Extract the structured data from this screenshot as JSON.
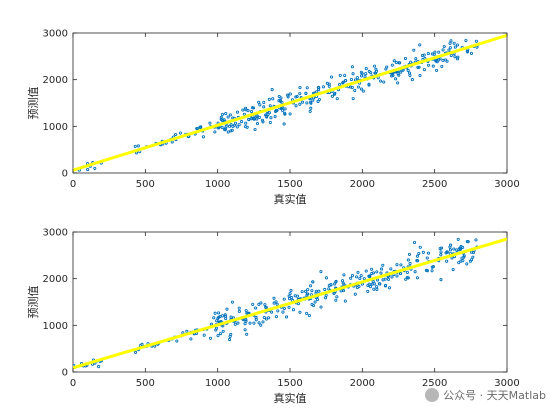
{
  "chart_data": [
    {
      "type": "scatter",
      "xlabel": "真实值",
      "ylabel": "预测值",
      "xlim": [
        0,
        3000
      ],
      "ylim": [
        0,
        3000
      ],
      "xticks": [
        0,
        500,
        1000,
        1500,
        2000,
        2500,
        3000
      ],
      "yticks": [
        0,
        1000,
        2000,
        3000
      ],
      "grid": false,
      "scatter_color": "#0072BD",
      "fit_color": "#FFFF00",
      "fit_line": {
        "x": [
          0,
          3000
        ],
        "y": [
          60,
          2950
        ]
      },
      "point_count": 360,
      "spread": 230,
      "seed": 11
    },
    {
      "type": "scatter",
      "xlabel": "真实值",
      "ylabel": "预测值",
      "xlim": [
        0,
        3000
      ],
      "ylim": [
        0,
        3000
      ],
      "xticks": [
        0,
        500,
        1000,
        1500,
        2000,
        2500,
        3000
      ],
      "yticks": [
        0,
        1000,
        2000,
        3000
      ],
      "grid": false,
      "scatter_color": "#0072BD",
      "fit_color": "#FFFF00",
      "fit_line": {
        "x": [
          0,
          3000
        ],
        "y": [
          90,
          2850
        ]
      },
      "point_count": 360,
      "spread": 250,
      "seed": 29
    }
  ],
  "watermark": {
    "text": "公众号 · 天天Matlab",
    "icon": "wechat-icon"
  }
}
